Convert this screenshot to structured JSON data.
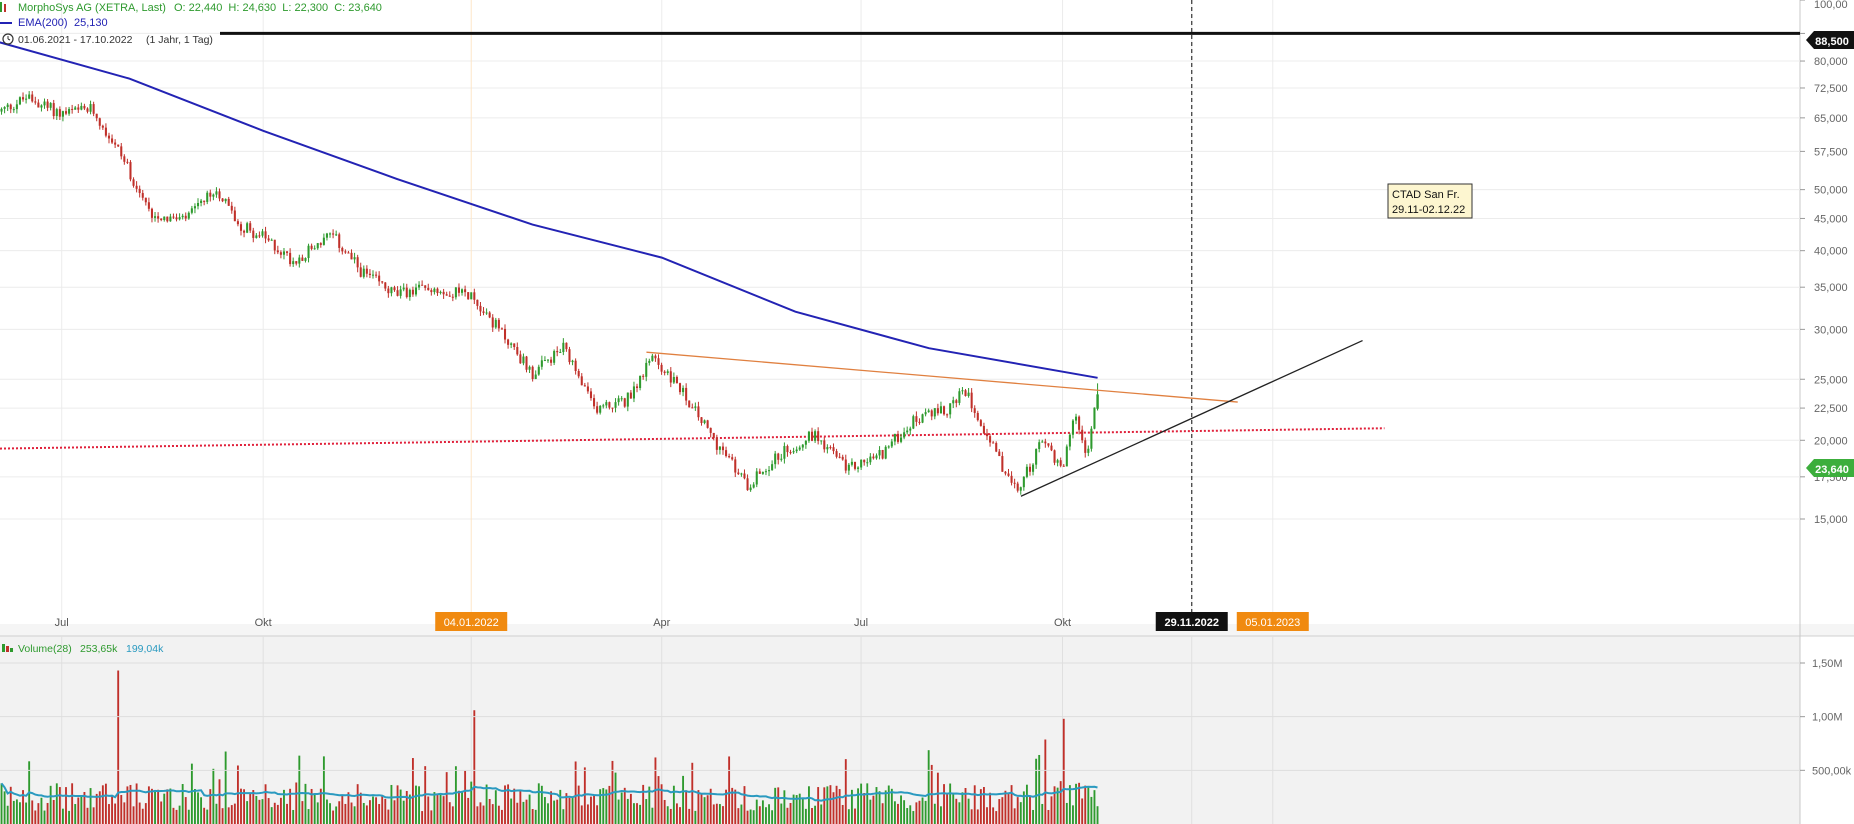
{
  "header": {
    "title": "MorphoSys AG (XETRA, Last)",
    "ohlc": "O: 22,440  H: 24,630  L: 22,300  C: 23,640",
    "ema_label": "EMA(200)",
    "ema_value": "25,130",
    "range": "01.06.2021 - 17.10.2022",
    "range_detail": "(1 Jahr, 1 Tag)"
  },
  "volume_header": {
    "label": "Volume(28)",
    "value1": "253,65k",
    "value2": "199,04k"
  },
  "annotation": {
    "line1": "CTAD San Fr.",
    "line2": "29.11-02.12.22"
  },
  "price_tags": {
    "horizontal_line": "88,500",
    "last_price": "23,640"
  },
  "colors": {
    "up": "#2e9a2e",
    "down": "#c0302a",
    "ema": "#2323b4",
    "volume_avg": "#2a9ac0",
    "resistance": "#e08040",
    "support_dotted": "#e0203a",
    "date_marker_orange": "#f08a10",
    "last_price_badge": "#3cae3c"
  },
  "chart_data": {
    "type": "candlestick",
    "scale": "log",
    "title": "MorphoSys AG (XETRA, Last)",
    "date_range": [
      "01.06.2021",
      "17.10.2022"
    ],
    "x_tick_labels": [
      "Jul",
      "Okt",
      "04.01.2022",
      "Apr",
      "Jul",
      "Okt",
      "29.11.2022",
      "05.01.2023"
    ],
    "y_tick_labels": [
      "15,000",
      "17,500",
      "20,000",
      "22,500",
      "25,000",
      "30,000",
      "35,000",
      "40,000",
      "45,000",
      "50,000",
      "57,500",
      "65,000",
      "72,500",
      "80,000",
      "88,500",
      "100,00"
    ],
    "ylim": [
      14.5,
      100
    ],
    "last": {
      "open": 22.44,
      "high": 24.63,
      "low": 22.3,
      "close": 23.64
    },
    "price_path": [
      {
        "date": "2021-06-01",
        "close": 66
      },
      {
        "date": "2021-06-15",
        "close": 70
      },
      {
        "date": "2021-07-01",
        "close": 66
      },
      {
        "date": "2021-07-15",
        "close": 67
      },
      {
        "date": "2021-07-28",
        "close": 57
      },
      {
        "date": "2021-08-10",
        "close": 46
      },
      {
        "date": "2021-08-25",
        "close": 44.5
      },
      {
        "date": "2021-09-10",
        "close": 50
      },
      {
        "date": "2021-09-20",
        "close": 44
      },
      {
        "date": "2021-10-01",
        "close": 42
      },
      {
        "date": "2021-10-15",
        "close": 38.5
      },
      {
        "date": "2021-11-01",
        "close": 42.5
      },
      {
        "date": "2021-11-15",
        "close": 37
      },
      {
        "date": "2021-12-01",
        "close": 34
      },
      {
        "date": "2021-12-15",
        "close": 35
      },
      {
        "date": "2022-01-04",
        "close": 34
      },
      {
        "date": "2022-01-20",
        "close": 29
      },
      {
        "date": "2022-02-01",
        "close": 25.5
      },
      {
        "date": "2022-02-15",
        "close": 28
      },
      {
        "date": "2022-03-01",
        "close": 22.5
      },
      {
        "date": "2022-03-15",
        "close": 23
      },
      {
        "date": "2022-03-28",
        "close": 27
      },
      {
        "date": "2022-04-10",
        "close": 24
      },
      {
        "date": "2022-04-25",
        "close": 20
      },
      {
        "date": "2022-05-10",
        "close": 17
      },
      {
        "date": "2022-05-25",
        "close": 19
      },
      {
        "date": "2022-06-10",
        "close": 20.5
      },
      {
        "date": "2022-06-25",
        "close": 18
      },
      {
        "date": "2022-07-10",
        "close": 19
      },
      {
        "date": "2022-07-25",
        "close": 21.5
      },
      {
        "date": "2022-08-10",
        "close": 22.5
      },
      {
        "date": "2022-08-18",
        "close": 24
      },
      {
        "date": "2022-08-30",
        "close": 19.5
      },
      {
        "date": "2022-09-10",
        "close": 16.5
      },
      {
        "date": "2022-09-22",
        "close": 20
      },
      {
        "date": "2022-10-01",
        "close": 18
      },
      {
        "date": "2022-10-06",
        "close": 22
      },
      {
        "date": "2022-10-12",
        "close": 19
      },
      {
        "date": "2022-10-17",
        "close": 23.64
      }
    ],
    "ema200": [
      {
        "date": "2021-06-01",
        "value": 86
      },
      {
        "date": "2021-08-01",
        "value": 75
      },
      {
        "date": "2021-10-01",
        "value": 62
      },
      {
        "date": "2021-12-01",
        "value": 52
      },
      {
        "date": "2022-02-01",
        "value": 44
      },
      {
        "date": "2022-04-01",
        "value": 39
      },
      {
        "date": "2022-06-01",
        "value": 32
      },
      {
        "date": "2022-08-01",
        "value": 28
      },
      {
        "date": "2022-10-17",
        "value": 25.13
      }
    ],
    "horizontal_line": 88.5,
    "resistance_line": [
      {
        "date": "2022-03-25",
        "value": 27.6
      },
      {
        "date": "2022-12-20",
        "value": 23.0
      }
    ],
    "support_line": [
      {
        "date": "2022-09-12",
        "value": 16.3
      },
      {
        "date": "2023-02-15",
        "value": 28.8
      }
    ],
    "dotted_line": [
      {
        "date": "2021-06-01",
        "value": 19.4
      },
      {
        "date": "2023-02-25",
        "value": 20.9
      }
    ],
    "marker_vertical": "29.11.2022",
    "volume": {
      "series": [
        {
          "name": "Volume(28)",
          "value": "253,65k"
        },
        {
          "name": "avg",
          "value": "199,04k"
        }
      ],
      "y_tick_labels": [
        "1,50M",
        "1,00M",
        "500,00k"
      ],
      "ylim": [
        0,
        1500000
      ],
      "peaks": [
        {
          "date": "2021-07-26",
          "volume": 1430000
        },
        {
          "date": "2022-01-05",
          "volume": 1060000
        },
        {
          "date": "2022-10-01",
          "volume": 980000
        }
      ]
    }
  }
}
